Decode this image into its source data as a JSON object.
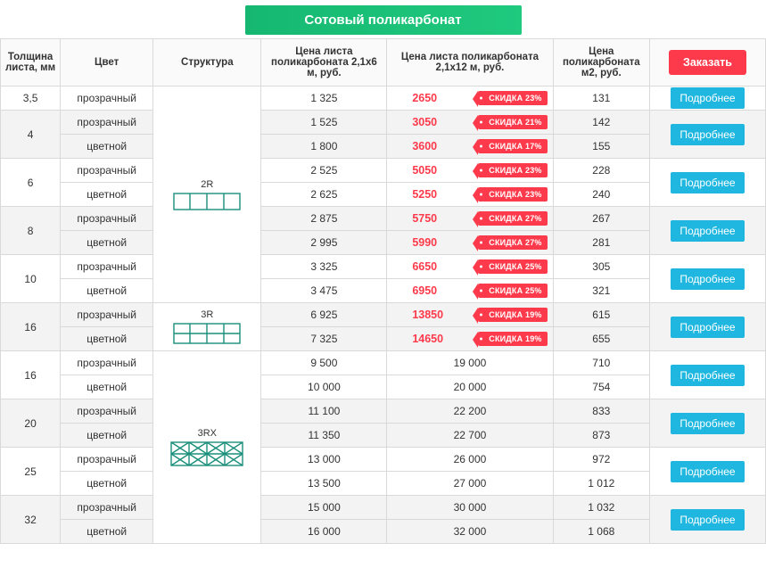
{
  "title": "Сотовый поликарбонат",
  "colors": {
    "accent_green": "#1fc97e",
    "accent_red": "#fd3a4b",
    "accent_cyan": "#1fb7e0",
    "border": "#d9d9d9",
    "zebra_light": "#ffffff",
    "zebra_dark": "#f3f3f3"
  },
  "headers": {
    "thickness": "Толщина листа, мм",
    "color": "Цвет",
    "structure": "Структура",
    "price6": "Цена листа поликарбоната 2,1x6 м, руб.",
    "price12": "Цена листа поликарбоната 2,1x12 м, руб.",
    "priceM2": "Цена поликарбоната м2, руб.",
    "order": "Заказать",
    "more": "Подробнее"
  },
  "structures": {
    "s2r": "2R",
    "s3r": "3R",
    "s3rx": "3RX"
  },
  "groups": [
    {
      "structure": "s2r",
      "blocks": [
        {
          "thickness": "3,5",
          "rows": [
            {
              "color": "прозрачный",
              "p6": "1 325",
              "p12": "2650",
              "discount": "СКИДКА 23%",
              "m2": "131"
            }
          ]
        },
        {
          "thickness": "4",
          "rows": [
            {
              "color": "прозрачный",
              "p6": "1 525",
              "p12": "3050",
              "discount": "СКИДКА 21%",
              "m2": "142"
            },
            {
              "color": "цветной",
              "p6": "1 800",
              "p12": "3600",
              "discount": "СКИДКА 17%",
              "m2": "155"
            }
          ]
        },
        {
          "thickness": "6",
          "rows": [
            {
              "color": "прозрачный",
              "p6": "2 525",
              "p12": "5050",
              "discount": "СКИДКА 23%",
              "m2": "228"
            },
            {
              "color": "цветной",
              "p6": "2 625",
              "p12": "5250",
              "discount": "СКИДКА 23%",
              "m2": "240"
            }
          ]
        },
        {
          "thickness": "8",
          "rows": [
            {
              "color": "прозрачный",
              "p6": "2 875",
              "p12": "5750",
              "discount": "СКИДКА 27%",
              "m2": "267"
            },
            {
              "color": "цветной",
              "p6": "2 995",
              "p12": "5990",
              "discount": "СКИДКА 27%",
              "m2": "281"
            }
          ]
        },
        {
          "thickness": "10",
          "rows": [
            {
              "color": "прозрачный",
              "p6": "3 325",
              "p12": "6650",
              "discount": "СКИДКА 25%",
              "m2": "305"
            },
            {
              "color": "цветной",
              "p6": "3 475",
              "p12": "6950",
              "discount": "СКИДКА 25%",
              "m2": "321"
            }
          ]
        }
      ]
    },
    {
      "structure": "s3r",
      "blocks": [
        {
          "thickness": "16",
          "rows": [
            {
              "color": "прозрачный",
              "p6": "6 925",
              "p12": "13850",
              "discount": "СКИДКА 19%",
              "m2": "615"
            },
            {
              "color": "цветной",
              "p6": "7 325",
              "p12": "14650",
              "discount": "СКИДКА 19%",
              "m2": "655"
            }
          ]
        }
      ]
    },
    {
      "structure": "s3rx",
      "blocks": [
        {
          "thickness": "16",
          "rows": [
            {
              "color": "прозрачный",
              "p6": "9 500",
              "p12": "19 000",
              "discount": null,
              "m2": "710"
            },
            {
              "color": "цветной",
              "p6": "10 000",
              "p12": "20 000",
              "discount": null,
              "m2": "754"
            }
          ]
        },
        {
          "thickness": "20",
          "rows": [
            {
              "color": "прозрачный",
              "p6": "11 100",
              "p12": "22 200",
              "discount": null,
              "m2": "833"
            },
            {
              "color": "цветной",
              "p6": "11 350",
              "p12": "22 700",
              "discount": null,
              "m2": "873"
            }
          ]
        },
        {
          "thickness": "25",
          "rows": [
            {
              "color": "прозрачный",
              "p6": "13 000",
              "p12": "26 000",
              "discount": null,
              "m2": "972"
            },
            {
              "color": "цветной",
              "p6": "13 500",
              "p12": "27 000",
              "discount": null,
              "m2": "1 012"
            }
          ]
        },
        {
          "thickness": "32",
          "rows": [
            {
              "color": "прозрачный",
              "p6": "15 000",
              "p12": "30 000",
              "discount": null,
              "m2": "1 032"
            },
            {
              "color": "цветной",
              "p6": "16 000",
              "p12": "32 000",
              "discount": null,
              "m2": "1 068"
            }
          ]
        }
      ]
    }
  ]
}
